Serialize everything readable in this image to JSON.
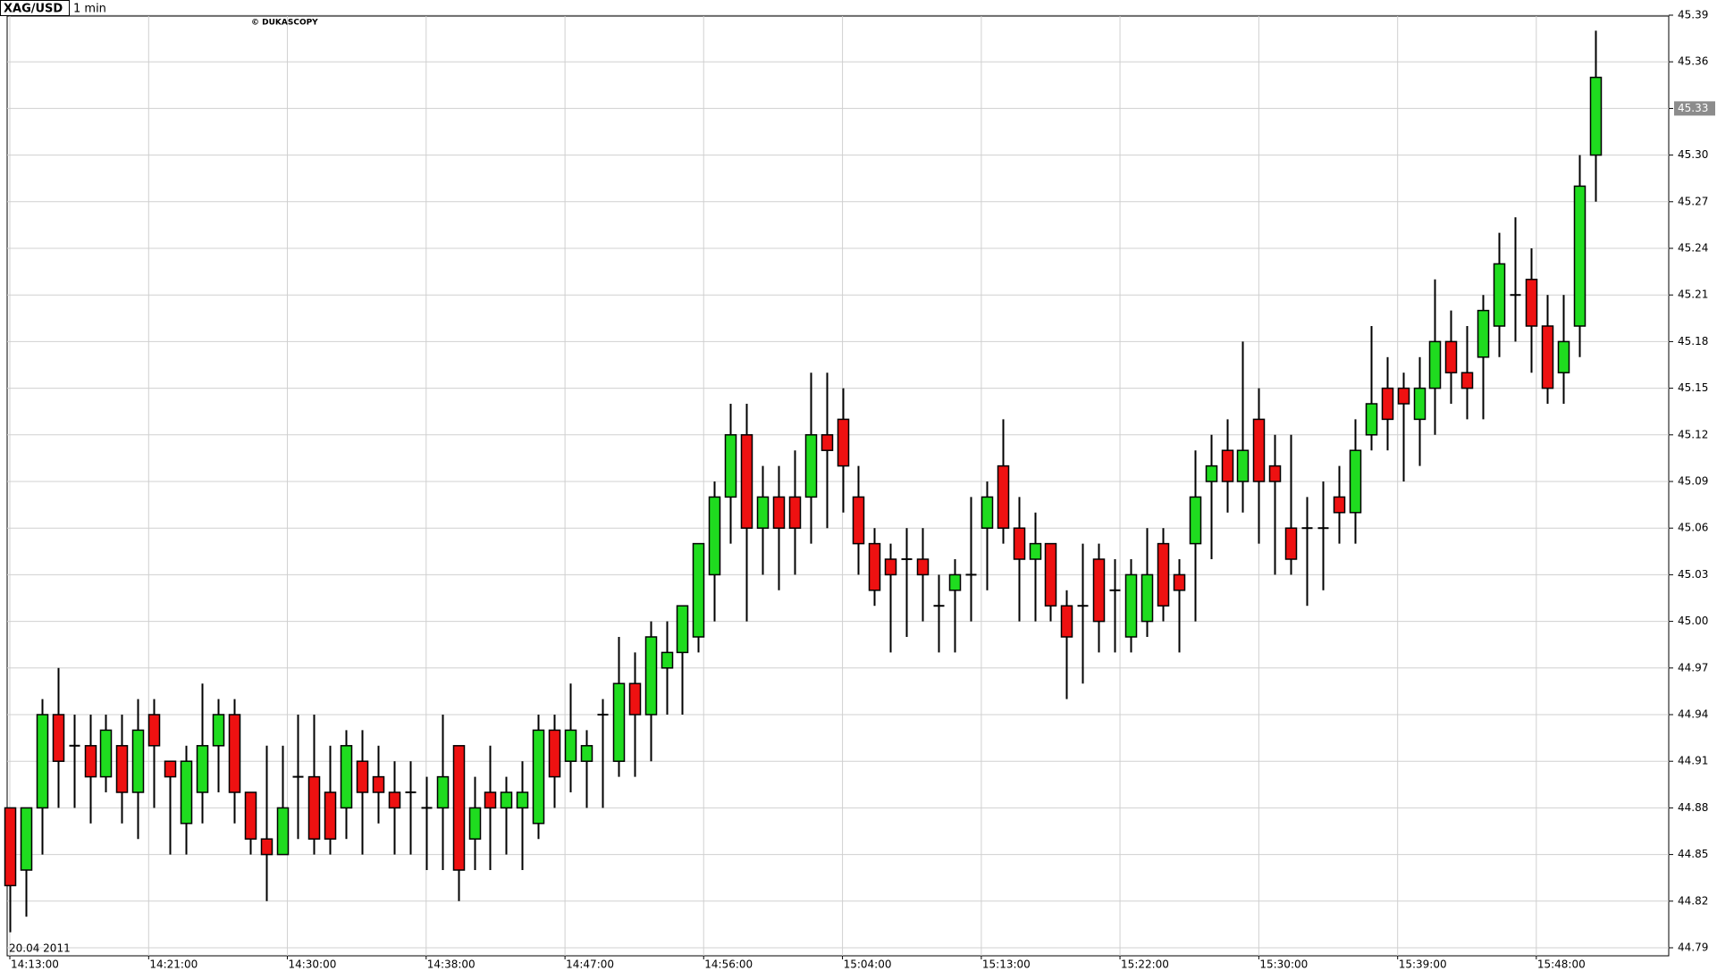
{
  "chart_data": {
    "type": "candlestick",
    "symbol": "XAG/USD",
    "period": "1 min",
    "watermark": "© DUKASCOPY",
    "date": "20.04 2011",
    "up_color": "#1fdc1f",
    "down_color": "#ee1111",
    "grid": true,
    "current_price": 45.33,
    "xlim": [
      0,
      103.6
    ],
    "xticks": [
      {
        "value": 0,
        "label": "14:13:00"
      },
      {
        "value": 8.67,
        "label": "14:21:00"
      },
      {
        "value": 17.33,
        "label": "14:30:00"
      },
      {
        "value": 26,
        "label": "14:38:00"
      },
      {
        "value": 34.67,
        "label": "14:47:00"
      },
      {
        "value": 43.33,
        "label": "14:56:00"
      },
      {
        "value": 52,
        "label": "15:04:00"
      },
      {
        "value": 60.67,
        "label": "15:13:00"
      },
      {
        "value": 69.33,
        "label": "15:22:00"
      },
      {
        "value": 78,
        "label": "15:30:00"
      },
      {
        "value": 86.67,
        "label": "15:39:00"
      },
      {
        "value": 95.33,
        "label": "15:48:00"
      }
    ],
    "ylim": [
      44.79,
      45.39
    ],
    "yticks": [
      44.79,
      44.82,
      44.85,
      44.88,
      44.91,
      44.94,
      44.97,
      {
        "value": 45.0,
        "label": "45.00"
      },
      45.03,
      45.06,
      45.09,
      45.12,
      45.15,
      45.18,
      45.21,
      45.24,
      45.27,
      {
        "value": 45.3,
        "label": "45.30"
      },
      45.33,
      45.36,
      45.39
    ],
    "open": [
      44.88,
      44.84,
      44.88,
      44.94,
      44.92,
      44.92,
      44.9,
      44.92,
      44.89,
      44.94,
      44.91,
      44.87,
      44.89,
      44.92,
      44.94,
      44.89,
      44.86,
      44.85,
      44.9,
      44.9,
      44.89,
      44.88,
      44.91,
      44.9,
      44.89,
      44.89,
      44.88,
      44.88,
      44.92,
      44.86,
      44.89,
      44.88,
      44.88,
      44.87,
      44.93,
      44.91,
      44.91,
      44.94,
      44.91,
      44.96,
      44.94,
      44.97,
      44.98,
      44.99,
      45.03,
      45.08,
      45.12,
      45.06,
      45.08,
      45.08,
      45.08,
      45.12,
      45.13,
      45.08,
      45.05,
      45.04,
      45.04,
      45.04,
      45.01,
      45.02,
      45.03,
      45.06,
      45.1,
      45.06,
      45.04,
      45.05,
      45.01,
      45.01,
      45.04,
      45.02,
      44.99,
      45.0,
      45.05,
      45.03,
      45.05,
      45.09,
      45.11,
      45.09,
      45.13,
      45.1,
      45.06,
      45.06,
      45.06,
      45.08,
      45.07,
      45.12,
      45.15,
      45.15,
      45.13,
      45.15,
      45.18,
      45.16,
      45.17,
      45.19,
      45.21,
      45.22,
      45.19,
      45.16,
      45.19,
      45.3
    ],
    "high": [
      44.88,
      44.88,
      44.95,
      44.97,
      44.94,
      44.94,
      44.94,
      44.94,
      44.95,
      44.95,
      44.91,
      44.92,
      44.96,
      44.95,
      44.95,
      44.89,
      44.92,
      44.92,
      44.94,
      44.94,
      44.92,
      44.93,
      44.93,
      44.92,
      44.91,
      44.91,
      44.9,
      44.94,
      44.92,
      44.9,
      44.92,
      44.9,
      44.91,
      44.94,
      44.94,
      44.96,
      44.93,
      44.95,
      44.99,
      44.98,
      45.0,
      45.0,
      45.01,
      45.05,
      45.09,
      45.14,
      45.14,
      45.1,
      45.1,
      45.11,
      45.16,
      45.16,
      45.15,
      45.1,
      45.06,
      45.05,
      45.06,
      45.06,
      45.03,
      45.04,
      45.08,
      45.09,
      45.13,
      45.08,
      45.07,
      45.05,
      45.02,
      45.05,
      45.05,
      45.04,
      45.04,
      45.06,
      45.06,
      45.04,
      45.11,
      45.12,
      45.13,
      45.18,
      45.15,
      45.12,
      45.12,
      45.08,
      45.09,
      45.1,
      45.13,
      45.19,
      45.17,
      45.16,
      45.17,
      45.22,
      45.2,
      45.19,
      45.21,
      45.25,
      45.26,
      45.24,
      45.21,
      45.21,
      45.3,
      45.38
    ],
    "low": [
      44.8,
      44.81,
      44.85,
      44.88,
      44.88,
      44.87,
      44.89,
      44.87,
      44.86,
      44.88,
      44.85,
      44.85,
      44.87,
      44.89,
      44.87,
      44.85,
      44.82,
      44.85,
      44.86,
      44.85,
      44.85,
      44.86,
      44.85,
      44.87,
      44.85,
      44.85,
      44.84,
      44.84,
      44.82,
      44.84,
      44.84,
      44.85,
      44.84,
      44.86,
      44.88,
      44.89,
      44.88,
      44.88,
      44.9,
      44.9,
      44.91,
      44.94,
      44.94,
      44.98,
      45.0,
      45.05,
      45.0,
      45.03,
      45.02,
      45.03,
      45.05,
      45.06,
      45.07,
      45.03,
      45.01,
      44.98,
      44.99,
      45.0,
      44.98,
      44.98,
      45.0,
      45.02,
      45.05,
      45.0,
      45.0,
      45.0,
      44.95,
      44.96,
      44.98,
      44.98,
      44.98,
      44.99,
      45.0,
      44.98,
      45.0,
      45.04,
      45.07,
      45.07,
      45.05,
      45.03,
      45.03,
      45.01,
      45.02,
      45.05,
      45.05,
      45.11,
      45.11,
      45.09,
      45.1,
      45.12,
      45.14,
      45.13,
      45.13,
      45.17,
      45.18,
      45.16,
      45.14,
      45.14,
      45.17,
      45.27
    ],
    "close": [
      44.83,
      44.88,
      44.94,
      44.91,
      44.92,
      44.9,
      44.93,
      44.89,
      44.93,
      44.92,
      44.9,
      44.91,
      44.92,
      44.94,
      44.89,
      44.86,
      44.85,
      44.88,
      44.9,
      44.86,
      44.86,
      44.92,
      44.89,
      44.89,
      44.88,
      44.89,
      44.88,
      44.9,
      44.84,
      44.88,
      44.88,
      44.89,
      44.89,
      44.93,
      44.9,
      44.93,
      44.92,
      44.94,
      44.96,
      44.94,
      44.99,
      44.98,
      45.01,
      45.05,
      45.08,
      45.12,
      45.06,
      45.08,
      45.06,
      45.06,
      45.12,
      45.11,
      45.1,
      45.05,
      45.02,
      45.03,
      45.04,
      45.03,
      45.01,
      45.03,
      45.03,
      45.08,
      45.06,
      45.04,
      45.05,
      45.01,
      44.99,
      45.01,
      45.0,
      45.02,
      45.03,
      45.03,
      45.01,
      45.02,
      45.08,
      45.1,
      45.09,
      45.11,
      45.09,
      45.09,
      45.04,
      45.06,
      45.06,
      45.07,
      45.11,
      45.14,
      45.13,
      45.14,
      45.15,
      45.18,
      45.16,
      45.15,
      45.2,
      45.23,
      45.21,
      45.19,
      45.15,
      45.18,
      45.28,
      45.35
    ]
  }
}
